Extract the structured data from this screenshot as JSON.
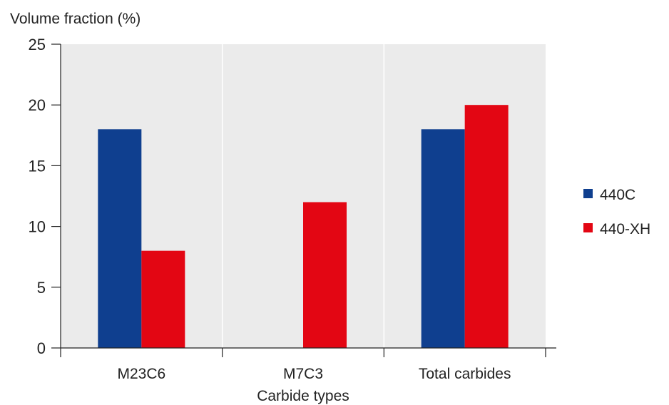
{
  "chart_data": {
    "type": "bar",
    "title": "",
    "ylabel": "Volume fraction (%)",
    "xlabel": "Carbide types",
    "categories": [
      "M23C6",
      "M7C3",
      "Total carbides"
    ],
    "series": [
      {
        "name": "440C",
        "color": "#0f3f8f",
        "values": [
          18,
          0,
          18
        ]
      },
      {
        "name": "440-XH",
        "color": "#e30613",
        "values": [
          8,
          12,
          20
        ]
      }
    ],
    "ylim": [
      0,
      25
    ],
    "yticks": [
      0,
      5,
      10,
      15,
      20,
      25
    ],
    "grid": "vertical category separators",
    "legend_position": "right",
    "plot_background": "#ebebeb"
  }
}
